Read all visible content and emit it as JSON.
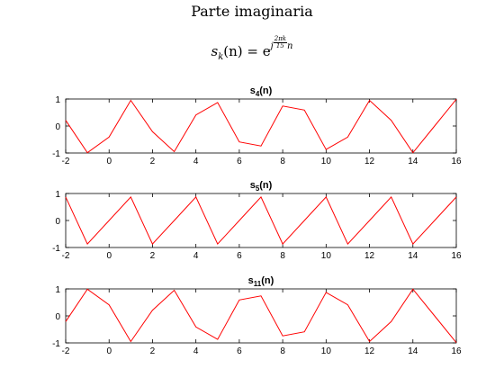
{
  "figure": {
    "title": "Parte imaginaria",
    "formula_base": "s",
    "formula_sub": "k",
    "formula_arg": "(n) = e",
    "formula_exp_pre": "j",
    "formula_exp_num": "2πk",
    "formula_exp_den": "15",
    "formula_exp_post": "n"
  },
  "chart_data": [
    {
      "type": "line",
      "title_base": "s",
      "title_sub": "4",
      "title_suffix": "(n)",
      "x": [
        -2,
        -1,
        0,
        1,
        2,
        3,
        4,
        5,
        6,
        7,
        8,
        9,
        10,
        11,
        12,
        13,
        14,
        15,
        16
      ],
      "series": [
        {
          "values": [
            0.21,
            -0.99,
            -0.41,
            0.95,
            -0.21,
            -0.95,
            0.41,
            0.87,
            -0.59,
            -0.74,
            0.74,
            0.59,
            -0.87,
            -0.41,
            0.95,
            0.21,
            -0.99,
            0.0,
            0.99
          ]
        }
      ],
      "xlim": [
        -2,
        16
      ],
      "ylim": [
        -1,
        1
      ],
      "xticks": [
        -2,
        0,
        2,
        4,
        6,
        8,
        10,
        12,
        14,
        16
      ],
      "yticks": [
        -1,
        0,
        1
      ],
      "color": "#ff0000"
    },
    {
      "type": "line",
      "title_base": "s",
      "title_sub": "5",
      "title_suffix": "(n)",
      "x": [
        -2,
        -1,
        0,
        1,
        2,
        3,
        4,
        5,
        6,
        7,
        8,
        9,
        10,
        11,
        12,
        13,
        14,
        15,
        16
      ],
      "series": [
        {
          "values": [
            0.87,
            -0.87,
            0.0,
            0.87,
            -0.87,
            0.0,
            0.87,
            -0.87,
            0.0,
            0.87,
            -0.87,
            0.0,
            0.87,
            -0.87,
            0.0,
            0.87,
            -0.87,
            0.0,
            0.87
          ]
        }
      ],
      "xlim": [
        -2,
        16
      ],
      "ylim": [
        -1,
        1
      ],
      "xticks": [
        -2,
        0,
        2,
        4,
        6,
        8,
        10,
        12,
        14,
        16
      ],
      "yticks": [
        -1,
        0,
        1
      ],
      "color": "#ff0000"
    },
    {
      "type": "line",
      "title_base": "s",
      "title_sub": "11",
      "title_suffix": "(n)",
      "x": [
        -2,
        -1,
        0,
        1,
        2,
        3,
        4,
        5,
        6,
        7,
        8,
        9,
        10,
        11,
        12,
        13,
        14,
        15,
        16
      ],
      "series": [
        {
          "values": [
            -0.21,
            0.99,
            0.41,
            -0.95,
            0.21,
            0.95,
            -0.41,
            -0.87,
            0.59,
            0.74,
            -0.74,
            -0.59,
            0.87,
            0.41,
            -0.95,
            -0.21,
            0.99,
            0.0,
            -0.99
          ]
        }
      ],
      "xlim": [
        -2,
        16
      ],
      "ylim": [
        -1,
        1
      ],
      "xticks": [
        -2,
        0,
        2,
        4,
        6,
        8,
        10,
        12,
        14,
        16
      ],
      "yticks": [
        -1,
        0,
        1
      ],
      "color": "#ff0000"
    }
  ]
}
